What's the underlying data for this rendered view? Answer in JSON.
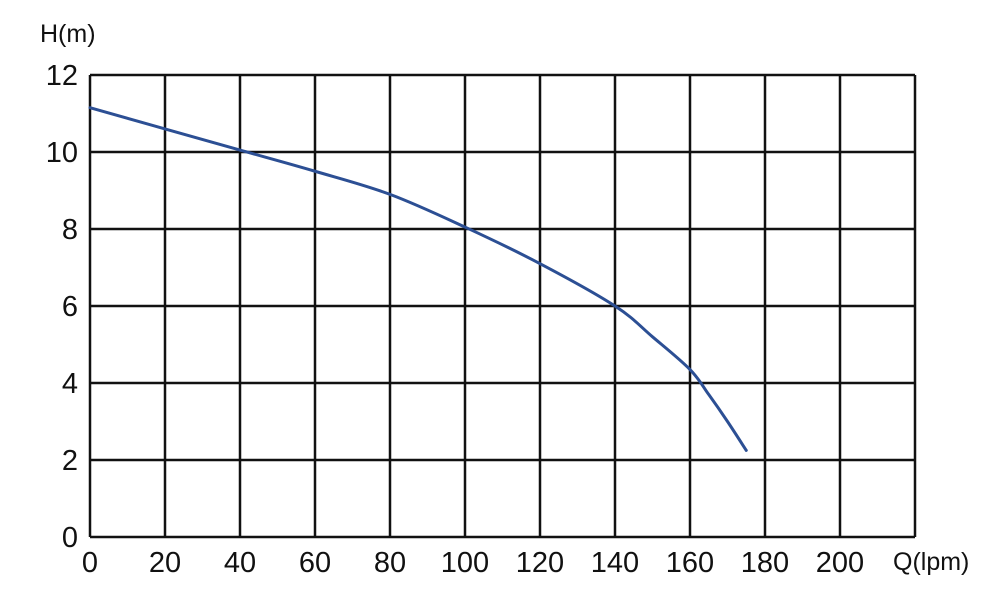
{
  "chart_data": {
    "type": "line",
    "title": "",
    "xlabel": "Q(lpm)",
    "ylabel": "H(m)",
    "xlim": [
      0,
      220
    ],
    "ylim": [
      0,
      12
    ],
    "x_ticks": [
      "0",
      "20",
      "40",
      "60",
      "80",
      "100",
      "120",
      "140",
      "160",
      "180",
      "200"
    ],
    "y_ticks": [
      "0",
      "2",
      "4",
      "6",
      "8",
      "10",
      "12"
    ],
    "grid": true,
    "legend": "none",
    "series": [
      {
        "color": "#2c4f94",
        "points": [
          {
            "x": 0,
            "y": 11.15
          },
          {
            "x": 20,
            "y": 10.6
          },
          {
            "x": 40,
            "y": 10.05
          },
          {
            "x": 60,
            "y": 9.5
          },
          {
            "x": 80,
            "y": 8.9
          },
          {
            "x": 100,
            "y": 8.05
          },
          {
            "x": 120,
            "y": 7.1
          },
          {
            "x": 140,
            "y": 6.0
          },
          {
            "x": 150,
            "y": 5.2
          },
          {
            "x": 160,
            "y": 4.35
          },
          {
            "x": 165,
            "y": 3.7
          },
          {
            "x": 170,
            "y": 3.0
          },
          {
            "x": 175,
            "y": 2.25
          }
        ]
      }
    ]
  }
}
